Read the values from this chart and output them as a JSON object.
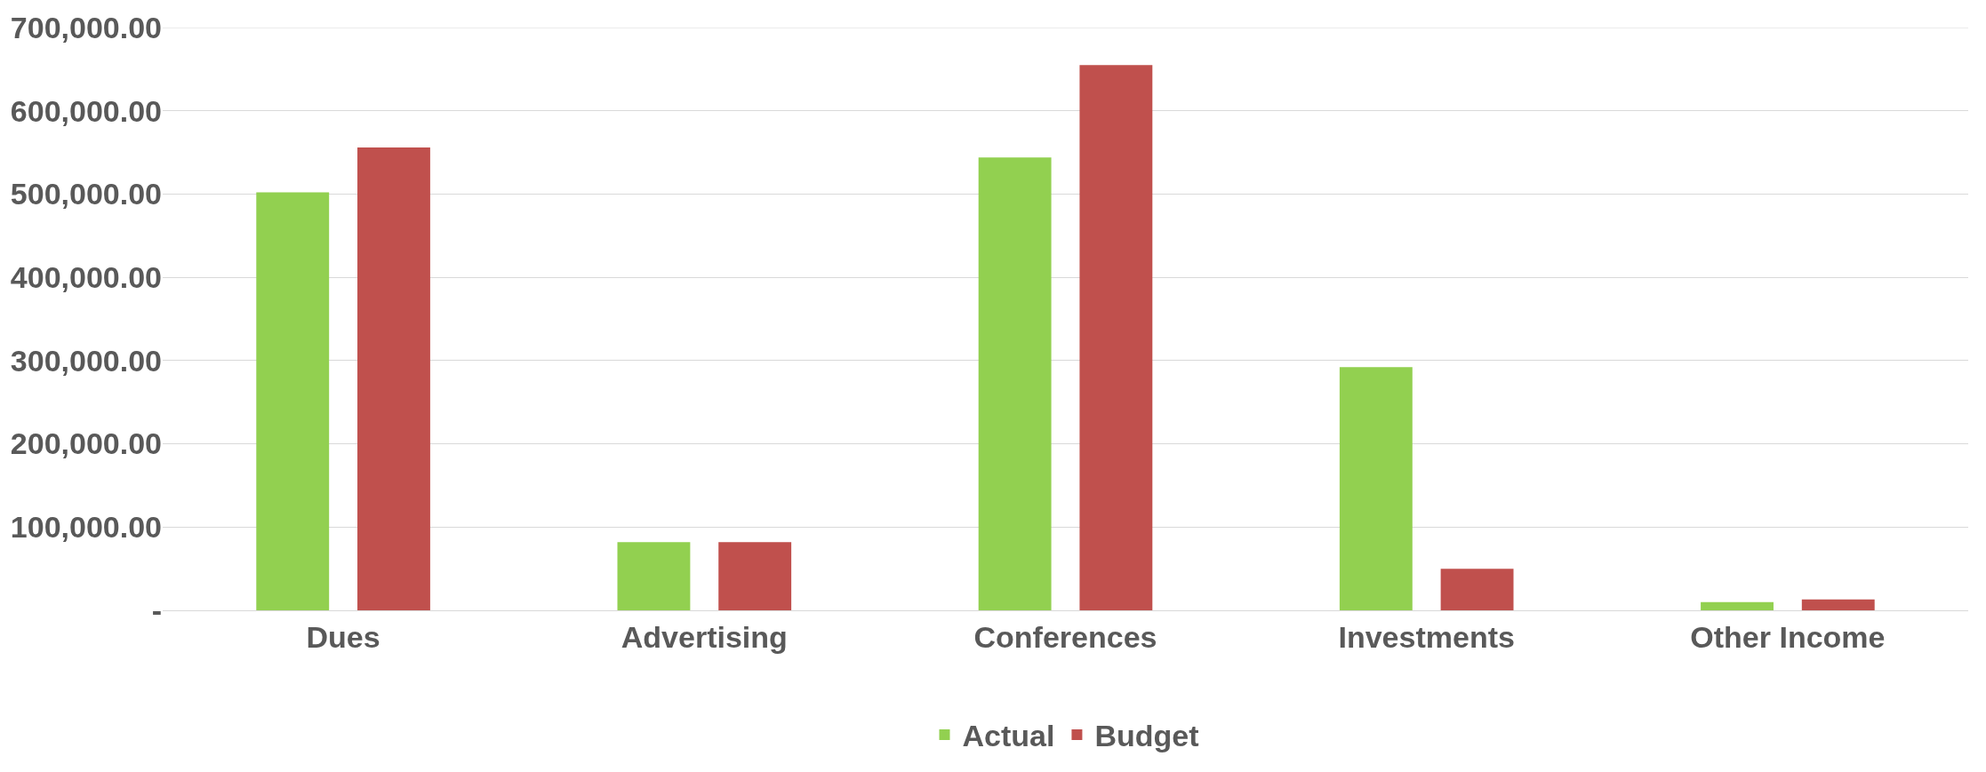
{
  "chart_data": {
    "type": "bar",
    "categories": [
      "Dues",
      "Advertising",
      "Conferences",
      "Investments",
      "Other Income"
    ],
    "series": [
      {
        "name": "Actual",
        "color": "#92d050",
        "values": [
          502000,
          82000,
          544000,
          292000,
          10000
        ]
      },
      {
        "name": "Budget",
        "color": "#c0504d",
        "values": [
          556000,
          82000,
          655000,
          50000,
          13000
        ]
      }
    ],
    "ylim": [
      0,
      700000
    ],
    "yticks": [
      {
        "value": 0,
        "label": "-"
      },
      {
        "value": 100000,
        "label": "100,000.00"
      },
      {
        "value": 200000,
        "label": "200,000.00"
      },
      {
        "value": 300000,
        "label": "300,000.00"
      },
      {
        "value": 400000,
        "label": "400,000.00"
      },
      {
        "value": 500000,
        "label": "500,000.00"
      },
      {
        "value": 600000,
        "label": "600,000.00"
      },
      {
        "value": 700000,
        "label": "700,000.00"
      }
    ],
    "grid": "y",
    "legend": "bottom"
  }
}
